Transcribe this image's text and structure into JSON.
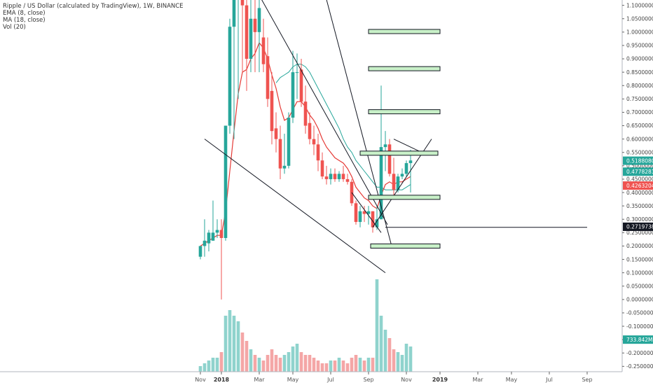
{
  "chart_data": {
    "type": "candlestick",
    "title": "Ripple / US Dollar (calculated by TradingView), 1W, BINANCE",
    "indicators": [
      "EMA (8, close)",
      "MA (18, close)",
      "Vol (20)"
    ],
    "x_ticks": [
      {
        "label": "Nov",
        "i": 0,
        "bold": false
      },
      {
        "label": "2018",
        "i": 5,
        "bold": true
      },
      {
        "label": "Mar",
        "i": 14,
        "bold": false
      },
      {
        "label": "May",
        "i": 22,
        "bold": false
      },
      {
        "label": "Jul",
        "i": 31,
        "bold": false
      },
      {
        "label": "Sep",
        "i": 40,
        "bold": false
      },
      {
        "label": "Nov",
        "i": 49,
        "bold": false
      },
      {
        "label": "2019",
        "i": 57,
        "bold": true
      },
      {
        "label": "Mar",
        "i": 66,
        "bold": false
      },
      {
        "label": "May",
        "i": 74,
        "bold": false
      },
      {
        "label": "Jul",
        "i": 83,
        "bold": false
      },
      {
        "label": "Sep",
        "i": 92,
        "bold": false
      }
    ],
    "y_ticks": [
      "1.1000000",
      "1.0500000",
      "1.0000000",
      "0.9500000",
      "0.9000000",
      "0.8500000",
      "0.8000000",
      "0.7500000",
      "0.7000000",
      "0.6500000",
      "0.6000000",
      "0.5500000",
      "0.5000000",
      "0.4500000",
      "0.4000000",
      "0.3500000",
      "0.3000000",
      "0.2500000",
      "0.2000000",
      "0.1500000",
      "0.1000000",
      "0.0500000",
      "0.0000000",
      "-0.0500000",
      "-0.1000000",
      "-0.1500000",
      "-0.2000000",
      "-0.2500000"
    ],
    "y_tick_values": [
      1.1,
      1.05,
      1.0,
      0.95,
      0.9,
      0.85,
      0.8,
      0.75,
      0.7,
      0.65,
      0.6,
      0.55,
      0.5,
      0.45,
      0.4,
      0.35,
      0.3,
      0.25,
      0.2,
      0.15,
      0.1,
      0.05,
      0.0,
      -0.05,
      -0.1,
      -0.15,
      -0.2,
      -0.25
    ],
    "ylim": [
      -0.27,
      1.12
    ],
    "candles": [
      {
        "o": 0.16,
        "h": 0.2,
        "l": 0.15,
        "c": 0.2
      },
      {
        "o": 0.2,
        "h": 0.3,
        "l": 0.16,
        "c": 0.22
      },
      {
        "o": 0.21,
        "h": 0.26,
        "l": 0.18,
        "c": 0.25
      },
      {
        "o": 0.22,
        "h": 0.37,
        "l": 0.22,
        "c": 0.25
      },
      {
        "o": 0.25,
        "h": 0.3,
        "l": 0.23,
        "c": 0.26
      },
      {
        "o": 0.26,
        "h": 0.3,
        "l": 0.0,
        "c": 0.23
      },
      {
        "o": 0.23,
        "h": 0.65,
        "l": 0.22,
        "c": 0.65
      },
      {
        "o": 0.65,
        "h": 1.05,
        "l": 0.62,
        "c": 1.02
      },
      {
        "o": 1.02,
        "h": 1.2,
        "l": 0.6,
        "c": 1.15
      },
      {
        "o": 1.15,
        "h": 1.25,
        "l": 0.75,
        "c": 1.25
      },
      {
        "o": 1.25,
        "h": 1.25,
        "l": 0.85,
        "c": 1.1
      },
      {
        "o": 1.1,
        "h": 1.2,
        "l": 0.78,
        "c": 0.9
      },
      {
        "o": 0.9,
        "h": 1.15,
        "l": 0.85,
        "c": 1.05
      },
      {
        "o": 1.05,
        "h": 1.12,
        "l": 0.85,
        "c": 1.0
      },
      {
        "o": 1.0,
        "h": 1.15,
        "l": 0.85,
        "c": 1.09
      },
      {
        "o": 0.98,
        "h": 1.05,
        "l": 0.85,
        "c": 0.88
      },
      {
        "o": 0.91,
        "h": 0.98,
        "l": 0.72,
        "c": 0.75
      },
      {
        "o": 0.78,
        "h": 0.85,
        "l": 0.58,
        "c": 0.63
      },
      {
        "o": 0.64,
        "h": 0.7,
        "l": 0.55,
        "c": 0.6
      },
      {
        "o": 0.6,
        "h": 0.65,
        "l": 0.45,
        "c": 0.49
      },
      {
        "o": 0.49,
        "h": 0.62,
        "l": 0.47,
        "c": 0.5
      },
      {
        "o": 0.5,
        "h": 0.7,
        "l": 0.49,
        "c": 0.68
      },
      {
        "o": 0.68,
        "h": 0.93,
        "l": 0.66,
        "c": 0.85
      },
      {
        "o": 0.85,
        "h": 0.92,
        "l": 0.75,
        "c": 0.85
      },
      {
        "o": 0.86,
        "h": 0.9,
        "l": 0.72,
        "c": 0.74
      },
      {
        "o": 0.74,
        "h": 0.8,
        "l": 0.62,
        "c": 0.65
      },
      {
        "o": 0.66,
        "h": 0.7,
        "l": 0.58,
        "c": 0.6
      },
      {
        "o": 0.6,
        "h": 0.65,
        "l": 0.54,
        "c": 0.58
      },
      {
        "o": 0.58,
        "h": 0.62,
        "l": 0.48,
        "c": 0.52
      },
      {
        "o": 0.52,
        "h": 0.55,
        "l": 0.45,
        "c": 0.46
      },
      {
        "o": 0.46,
        "h": 0.5,
        "l": 0.43,
        "c": 0.45
      },
      {
        "o": 0.45,
        "h": 0.49,
        "l": 0.43,
        "c": 0.47
      },
      {
        "o": 0.47,
        "h": 0.49,
        "l": 0.44,
        "c": 0.45
      },
      {
        "o": 0.45,
        "h": 0.48,
        "l": 0.44,
        "c": 0.47
      },
      {
        "o": 0.47,
        "h": 0.5,
        "l": 0.44,
        "c": 0.45
      },
      {
        "o": 0.45,
        "h": 0.47,
        "l": 0.43,
        "c": 0.44
      },
      {
        "o": 0.44,
        "h": 0.45,
        "l": 0.35,
        "c": 0.36
      },
      {
        "o": 0.36,
        "h": 0.37,
        "l": 0.28,
        "c": 0.29
      },
      {
        "o": 0.29,
        "h": 0.35,
        "l": 0.27,
        "c": 0.33
      },
      {
        "o": 0.33,
        "h": 0.35,
        "l": 0.29,
        "c": 0.32
      },
      {
        "o": 0.32,
        "h": 0.35,
        "l": 0.28,
        "c": 0.33
      },
      {
        "o": 0.33,
        "h": 0.33,
        "l": 0.25,
        "c": 0.27
      },
      {
        "o": 0.27,
        "h": 0.35,
        "l": 0.26,
        "c": 0.3
      },
      {
        "o": 0.3,
        "h": 0.8,
        "l": 0.3,
        "c": 0.57
      },
      {
        "o": 0.57,
        "h": 0.63,
        "l": 0.48,
        "c": 0.58
      },
      {
        "o": 0.58,
        "h": 0.6,
        "l": 0.46,
        "c": 0.47
      },
      {
        "o": 0.47,
        "h": 0.53,
        "l": 0.39,
        "c": 0.41
      },
      {
        "o": 0.41,
        "h": 0.47,
        "l": 0.4,
        "c": 0.46
      },
      {
        "o": 0.46,
        "h": 0.49,
        "l": 0.45,
        "c": 0.47
      },
      {
        "o": 0.47,
        "h": 0.52,
        "l": 0.46,
        "c": 0.51
      },
      {
        "o": 0.51,
        "h": 0.56,
        "l": 0.4,
        "c": 0.52
      }
    ],
    "ema": [
      0.2,
      0.21,
      0.22,
      0.23,
      0.24,
      0.24,
      0.33,
      0.48,
      0.63,
      0.77,
      0.85,
      0.86,
      0.9,
      0.92,
      0.96,
      0.94,
      0.9,
      0.84,
      0.79,
      0.72,
      0.67,
      0.68,
      0.71,
      0.74,
      0.74,
      0.72,
      0.69,
      0.67,
      0.64,
      0.6,
      0.57,
      0.55,
      0.53,
      0.52,
      0.51,
      0.49,
      0.46,
      0.42,
      0.4,
      0.38,
      0.37,
      0.35,
      0.34,
      0.39,
      0.43,
      0.44,
      0.43,
      0.44,
      0.44,
      0.45,
      0.46
    ],
    "ma": [
      null,
      null,
      null,
      null,
      null,
      null,
      null,
      null,
      null,
      null,
      null,
      null,
      null,
      null,
      null,
      null,
      null,
      null,
      0.81,
      0.83,
      0.84,
      0.85,
      0.87,
      0.88,
      0.88,
      0.87,
      0.85,
      0.82,
      0.79,
      0.76,
      0.73,
      0.7,
      0.67,
      0.64,
      0.6,
      0.57,
      0.55,
      0.52,
      0.5,
      0.48,
      0.46,
      0.44,
      0.42,
      0.42,
      0.41,
      0.41,
      0.41,
      0.41,
      0.41,
      0.42,
      0.43
    ],
    "volume": [
      2,
      3,
      4,
      5,
      5,
      7,
      20,
      22,
      20,
      18,
      14,
      11,
      8,
      6,
      5,
      4,
      6,
      8,
      6,
      5,
      6,
      7,
      9,
      10,
      7,
      6,
      6,
      5,
      4,
      3,
      3,
      4,
      4,
      5,
      4,
      3,
      5,
      6,
      5,
      4,
      5,
      5,
      33,
      20,
      15,
      12,
      8,
      7,
      6,
      10,
      9
    ],
    "volume_max": 33,
    "trendlines": [
      {
        "i1": 1.0,
        "y1": 0.6,
        "i2": 44.0,
        "y2": 0.1
      },
      {
        "i1": 10.0,
        "y1": 1.25,
        "i2": 44.5,
        "y2": 0.28
      },
      {
        "i1": 27.0,
        "y1": 1.3,
        "i2": 45.5,
        "y2": 0.2
      },
      {
        "i1": 36.0,
        "y1": 0.4,
        "i2": 43.0,
        "y2": 0.25
      },
      {
        "i1": 41.0,
        "y1": 0.27,
        "i2": 55.0,
        "y2": 0.6
      },
      {
        "i1": 46.0,
        "y1": 0.6,
        "i2": 54.0,
        "y2": 0.54
      },
      {
        "i1": 44.0,
        "y1": 0.27,
        "i2": 92.0,
        "y2": 0.27
      }
    ],
    "boxes": [
      {
        "i1": 40.0,
        "i2": 57.0,
        "top": 1.01,
        "bottom": 0.998
      },
      {
        "i1": 40.0,
        "i2": 57.0,
        "top": 0.871,
        "bottom": 0.86
      },
      {
        "i1": 40.0,
        "i2": 57.0,
        "top": 0.71,
        "bottom": 0.7
      },
      {
        "i1": 38.0,
        "i2": 56.5,
        "top": 0.555,
        "bottom": 0.54
      },
      {
        "i1": 40.0,
        "i2": 57.0,
        "top": 0.39,
        "bottom": 0.38
      },
      {
        "i1": 40.5,
        "i2": 57.0,
        "top": 0.208,
        "bottom": 0.192
      }
    ],
    "price_badges": [
      {
        "label": "0.5188080",
        "value": 0.519,
        "color": "#26a69a"
      },
      {
        "label": "0.4778281",
        "value": 0.478,
        "color": "#26a69a"
      },
      {
        "label": "0.4263204",
        "value": 0.426,
        "color": "#ef5350"
      },
      {
        "label": "0.2719738",
        "value": 0.272,
        "color": "#131722"
      },
      {
        "label": "733.842M",
        "value": -0.15,
        "color": "#26a69a"
      }
    ],
    "colors": {
      "up": "#26a69a",
      "down": "#ef5350",
      "up_vol": "#8fd3cd",
      "down_vol": "#f4a6a6",
      "ema": "#e53935",
      "ma": "#26a69a",
      "line": "#131722",
      "box_fill": "#c8f0c8",
      "box_stroke": "#131722"
    }
  }
}
